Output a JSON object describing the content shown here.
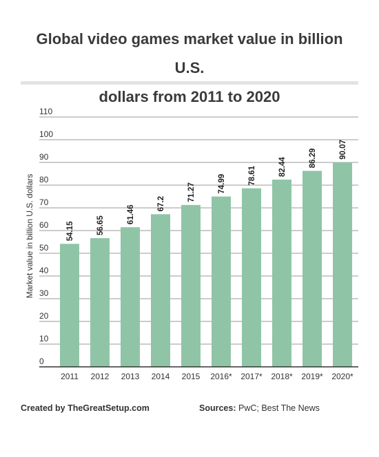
{
  "chart_data": {
    "type": "bar",
    "title": "Global video games market value in billion U.S. dollars from 2011 to 2020",
    "ylabel": "Market value in billion U.S. dollars",
    "xlabel": "",
    "categories": [
      "2011",
      "2012",
      "2013",
      "2014",
      "2015",
      "2016*",
      "2017*",
      "2018*",
      "2019*",
      "2020*"
    ],
    "values": [
      54.15,
      56.65,
      61.46,
      67.2,
      71.27,
      74.99,
      78.61,
      82.44,
      86.29,
      90.07
    ],
    "data_labels": [
      "54.15",
      "56.65",
      "61.46",
      "67.2",
      "71.27",
      "74.99",
      "78.61",
      "82.44",
      "86.29",
      "90.07"
    ],
    "ylim": [
      0,
      110
    ],
    "yticks": [
      "0",
      "10",
      "20",
      "30",
      "40",
      "50",
      "60",
      "70",
      "80",
      "90",
      "100",
      "110"
    ],
    "grid": true,
    "bar_color": "#8fc5a6"
  },
  "title_lines": [
    "Global video games market value in billion U.S.",
    "dollars from 2011 to 2020"
  ],
  "footer": {
    "created_label": "Created by TheGreatSetup.com",
    "sources_label": "Sources:",
    "sources_value": "PwC; Best The News"
  }
}
